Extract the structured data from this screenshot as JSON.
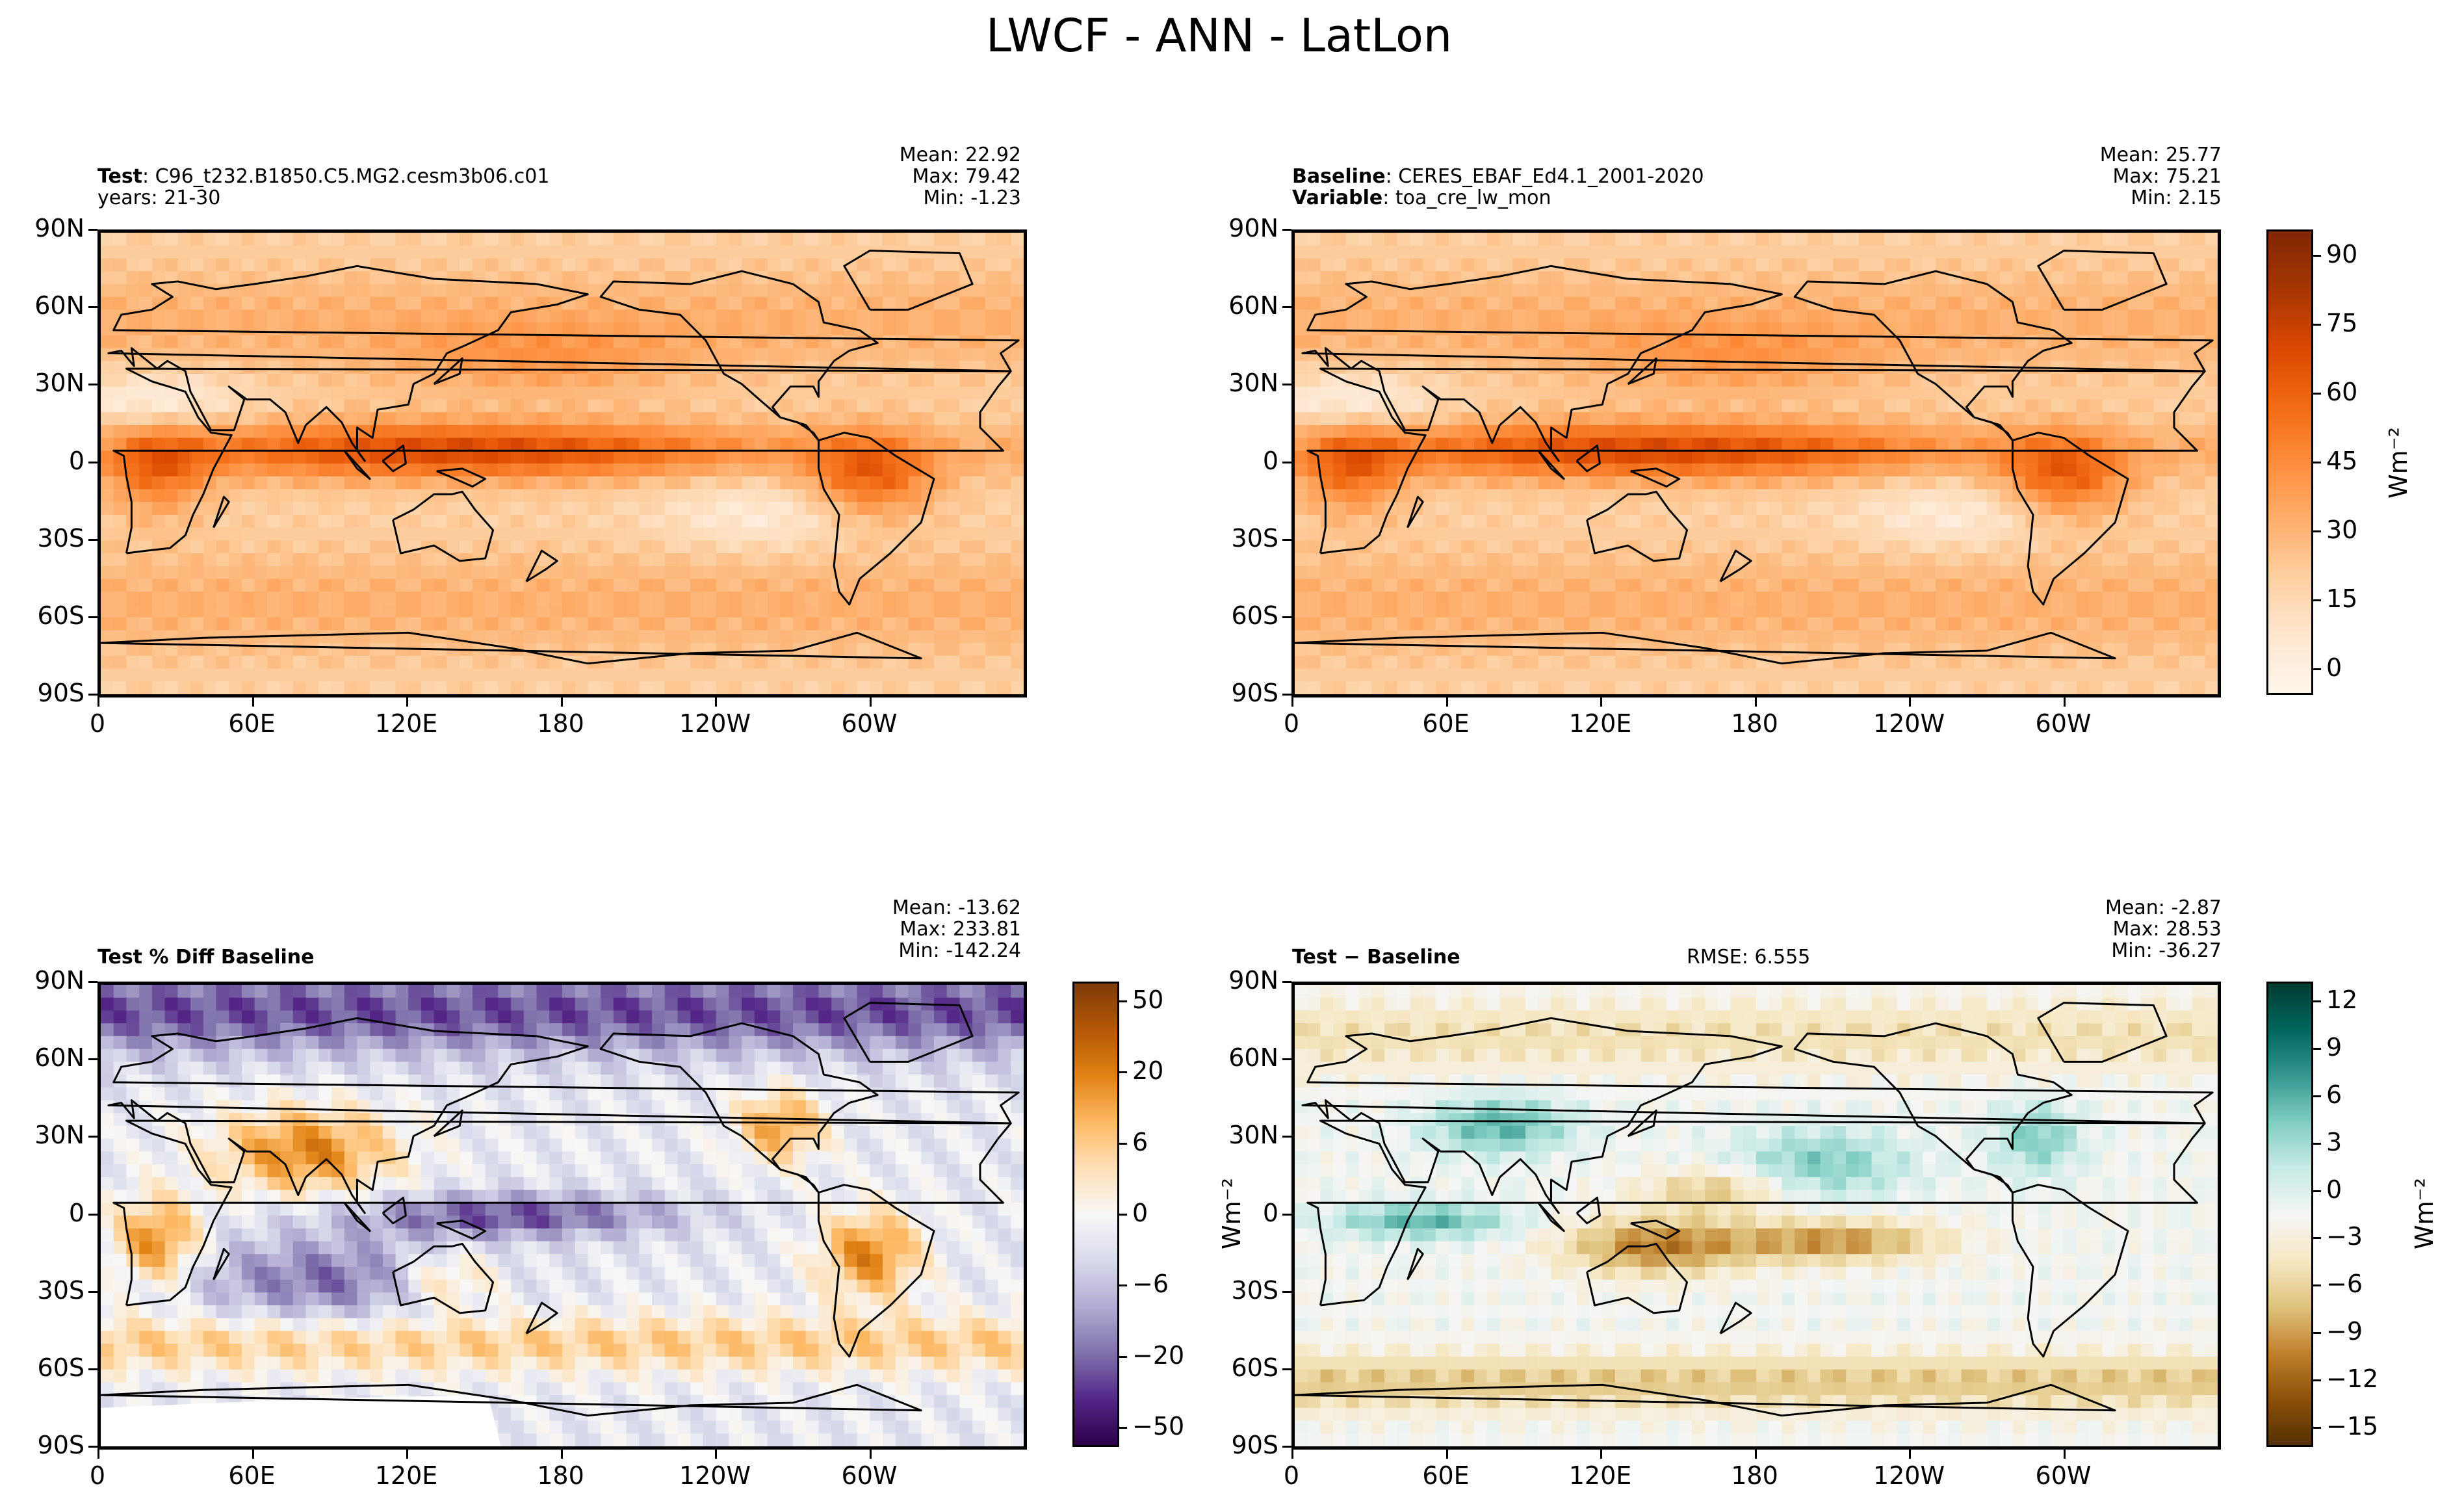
{
  "figure_title": "LWCF - ANN - LatLon",
  "panels": {
    "test": {
      "meta_line1_bold": "Test",
      "meta_line1": ": C96_t232.B1850.C5.MG2.cesm3b06.c01",
      "meta_line2": "years: 21-30",
      "stat_mean": "Mean: 22.92",
      "stat_max": "Max: 79.42",
      "stat_min": "Min: -1.23"
    },
    "baseline": {
      "meta_line1_bold": "Baseline",
      "meta_line1": ": CERES_EBAF_Ed4.1_2001-2020",
      "meta_line2_bold": "Variable",
      "meta_line2": ": toa_cre_lw_mon",
      "stat_mean": "Mean: 25.77",
      "stat_max": "Max: 75.21",
      "stat_min": "Min:  2.15"
    },
    "pctdiff": {
      "meta_line1_bold": "Test % Diff Baseline",
      "stat_mean": "Mean: -13.62",
      "stat_max": "Max: 233.81",
      "stat_min": "Min: -142.24"
    },
    "diff": {
      "meta_line1_bold": "Test − Baseline",
      "rmse": "RMSE: 6.555",
      "stat_mean": "Mean: -2.87",
      "stat_max": "Max: 28.53",
      "stat_min": "Min: -36.27"
    }
  },
  "axes": {
    "lat_ticks": [
      "90N",
      "60N",
      "30N",
      "0",
      "30S",
      "60S",
      "90S"
    ],
    "lon_ticks": [
      "0",
      "60E",
      "120E",
      "180",
      "120W",
      "60W"
    ]
  },
  "colorbars": {
    "top": {
      "ticks": [
        "90",
        "75",
        "60",
        "45",
        "30",
        "15",
        "0"
      ],
      "unit": "Wm⁻²",
      "colors": [
        "#fff5eb",
        "#fee6ce",
        "#fdd0a2",
        "#fdae6b",
        "#fd8d3c",
        "#f16913",
        "#d94801",
        "#a63603",
        "#7f2704"
      ]
    },
    "pct": {
      "ticks": [
        "50",
        "20",
        "6",
        "0",
        "−6",
        "−20",
        "−50"
      ],
      "unit": "Wm⁻²",
      "colors": [
        "#2d004b",
        "#542788",
        "#8073ac",
        "#b2abd2",
        "#d8daeb",
        "#f7f7f7",
        "#fee0b6",
        "#fdb863",
        "#e08214",
        "#b35806",
        "#7f3b08"
      ]
    },
    "diff": {
      "ticks": [
        "12",
        "9",
        "6",
        "3",
        "0",
        "−3",
        "−6",
        "−9",
        "−12",
        "−15"
      ],
      "unit": "Wm⁻²",
      "colors": [
        "#543005",
        "#8c510a",
        "#bf812d",
        "#dfc27d",
        "#f6e8c3",
        "#f5f5f5",
        "#c7eae5",
        "#80cdc1",
        "#35978f",
        "#01665e",
        "#003c30"
      ]
    }
  },
  "chart_data": [
    {
      "type": "heatmap",
      "title": "Test",
      "subtitle": "C96_t232.B1850.C5.MG2.cesm3b06.c01 years: 21-30",
      "x_ticks": [
        "0",
        "60E",
        "120E",
        "180",
        "120W",
        "60W"
      ],
      "y_ticks": [
        "90N",
        "60N",
        "30N",
        "0",
        "30S",
        "60S",
        "90S"
      ],
      "colorbar_ticks": [
        0,
        15,
        30,
        45,
        60,
        75,
        90
      ],
      "colorbar_unit": "Wm⁻²",
      "mean": 22.92,
      "max": 79.42,
      "min": -1.23
    },
    {
      "type": "heatmap",
      "title": "Baseline",
      "subtitle": "CERES_EBAF_Ed4.1_2001-2020 Variable: toa_cre_lw_mon",
      "x_ticks": [
        "0",
        "60E",
        "120E",
        "180",
        "120W",
        "60W"
      ],
      "y_ticks": [
        "90N",
        "60N",
        "30N",
        "0",
        "30S",
        "60S",
        "90S"
      ],
      "colorbar_ticks": [
        0,
        15,
        30,
        45,
        60,
        75,
        90
      ],
      "colorbar_unit": "Wm⁻²",
      "mean": 25.77,
      "max": 75.21,
      "min": 2.15
    },
    {
      "type": "heatmap",
      "title": "Test % Diff Baseline",
      "x_ticks": [
        "0",
        "60E",
        "120E",
        "180",
        "120W",
        "60W"
      ],
      "y_ticks": [
        "90N",
        "60N",
        "30N",
        "0",
        "30S",
        "60S",
        "90S"
      ],
      "colorbar_ticks": [
        -50,
        -20,
        -6,
        0,
        6,
        20,
        50
      ],
      "colorbar_unit": "Wm⁻²",
      "mean": -13.62,
      "max": 233.81,
      "min": -142.24
    },
    {
      "type": "heatmap",
      "title": "Test − Baseline",
      "x_ticks": [
        "0",
        "60E",
        "120E",
        "180",
        "120W",
        "60W"
      ],
      "y_ticks": [
        "90N",
        "60N",
        "30N",
        "0",
        "30S",
        "60S",
        "90S"
      ],
      "colorbar_ticks": [
        -15,
        -12,
        -9,
        -6,
        -3,
        0,
        3,
        6,
        9,
        12
      ],
      "colorbar_unit": "Wm⁻²",
      "rmse": 6.555,
      "mean": -2.87,
      "max": 28.53,
      "min": -36.27
    }
  ]
}
